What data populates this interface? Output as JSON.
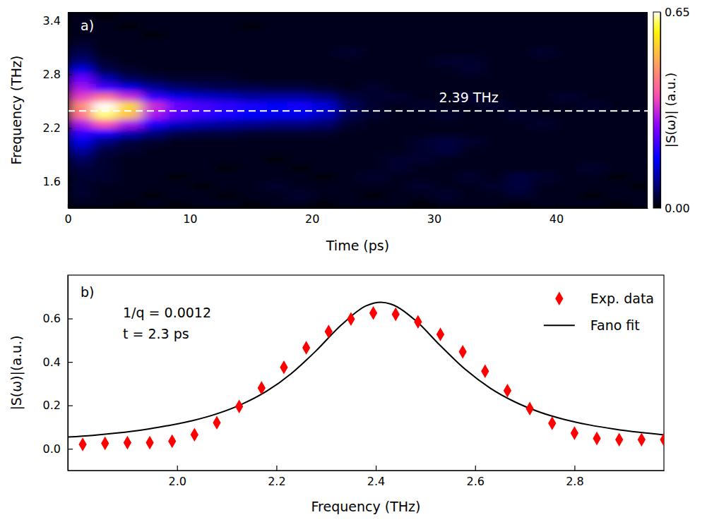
{
  "chart_data": [
    {
      "type": "heatmap",
      "panel_label": "a)",
      "x_label": "Time (ps)",
      "y_label": "Frequency (THz)",
      "xlim": [
        0,
        47.5
      ],
      "xticks": [
        0,
        10,
        20,
        30,
        40
      ],
      "ylim": [
        1.3,
        3.5
      ],
      "yticks": [
        1.6,
        2.2,
        2.8,
        3.4
      ],
      "x": [
        1,
        3,
        5,
        7,
        9,
        11,
        13,
        15,
        17,
        19,
        21,
        23,
        25,
        27,
        29,
        31,
        33,
        35,
        37,
        39,
        41,
        43,
        45,
        47
      ],
      "y": [
        1.35,
        1.45,
        1.55,
        1.65,
        1.75,
        1.85,
        1.95,
        2.05,
        2.15,
        2.25,
        2.35,
        2.45,
        2.55,
        2.65,
        2.75,
        2.85,
        2.95,
        3.05,
        3.15,
        3.25,
        3.35,
        3.45
      ],
      "z": [
        [
          0.02,
          0.02,
          0.01,
          0.02,
          0.01,
          0.02,
          0.02,
          0.01,
          0.02,
          0.02,
          0.01,
          0.02,
          0.02,
          0.02,
          0.01,
          0.02,
          0.02,
          0.02,
          0.01,
          0.02,
          0.02,
          0.02,
          0.01,
          0.02
        ],
        [
          0.03,
          0.02,
          0.02,
          0.01,
          0.02,
          0.02,
          0.01,
          0.02,
          0.02,
          0.03,
          0.02,
          0.02,
          0.01,
          0.02,
          0.02,
          0.03,
          0.02,
          0.02,
          0.03,
          0.02,
          0.02,
          0.01,
          0.02,
          0.02
        ],
        [
          0.03,
          0.02,
          0.02,
          0.02,
          0.02,
          0.01,
          0.02,
          0.02,
          0.03,
          0.02,
          0.02,
          0.02,
          0.02,
          0.02,
          0.03,
          0.02,
          0.02,
          0.03,
          0.04,
          0.02,
          0.02,
          0.02,
          0.02,
          0.01
        ],
        [
          0.03,
          0.03,
          0.02,
          0.02,
          0.01,
          0.02,
          0.02,
          0.02,
          0.02,
          0.02,
          0.01,
          0.02,
          0.03,
          0.02,
          0.02,
          0.02,
          0.03,
          0.02,
          0.04,
          0.03,
          0.02,
          0.02,
          0.01,
          0.02
        ],
        [
          0.04,
          0.03,
          0.02,
          0.02,
          0.02,
          0.02,
          0.01,
          0.02,
          0.02,
          0.01,
          0.02,
          0.02,
          0.02,
          0.03,
          0.02,
          0.02,
          0.02,
          0.02,
          0.02,
          0.02,
          0.02,
          0.03,
          0.02,
          0.02
        ],
        [
          0.06,
          0.03,
          0.02,
          0.02,
          0.02,
          0.02,
          0.02,
          0.02,
          0.01,
          0.02,
          0.02,
          0.02,
          0.02,
          0.03,
          0.03,
          0.02,
          0.02,
          0.02,
          0.02,
          0.02,
          0.02,
          0.02,
          0.02,
          0.02
        ],
        [
          0.1,
          0.04,
          0.03,
          0.02,
          0.02,
          0.02,
          0.02,
          0.02,
          0.02,
          0.02,
          0.02,
          0.02,
          0.02,
          0.02,
          0.03,
          0.04,
          0.02,
          0.02,
          0.02,
          0.02,
          0.02,
          0.02,
          0.02,
          0.02
        ],
        [
          0.15,
          0.08,
          0.04,
          0.03,
          0.02,
          0.02,
          0.02,
          0.02,
          0.02,
          0.02,
          0.02,
          0.02,
          0.02,
          0.02,
          0.03,
          0.04,
          0.03,
          0.02,
          0.02,
          0.02,
          0.02,
          0.02,
          0.02,
          0.02
        ],
        [
          0.2,
          0.18,
          0.12,
          0.08,
          0.05,
          0.04,
          0.04,
          0.03,
          0.03,
          0.03,
          0.03,
          0.02,
          0.02,
          0.02,
          0.02,
          0.02,
          0.02,
          0.02,
          0.02,
          0.02,
          0.02,
          0.02,
          0.02,
          0.02
        ],
        [
          0.3,
          0.38,
          0.3,
          0.18,
          0.13,
          0.11,
          0.1,
          0.09,
          0.08,
          0.08,
          0.07,
          0.03,
          0.02,
          0.02,
          0.02,
          0.02,
          0.02,
          0.02,
          0.02,
          0.03,
          0.02,
          0.02,
          0.02,
          0.02
        ],
        [
          0.42,
          0.62,
          0.52,
          0.3,
          0.23,
          0.2,
          0.18,
          0.16,
          0.15,
          0.15,
          0.12,
          0.05,
          0.03,
          0.02,
          0.02,
          0.03,
          0.02,
          0.02,
          0.03,
          0.02,
          0.02,
          0.02,
          0.02,
          0.02
        ],
        [
          0.45,
          0.65,
          0.55,
          0.33,
          0.25,
          0.22,
          0.2,
          0.18,
          0.16,
          0.17,
          0.14,
          0.06,
          0.03,
          0.02,
          0.03,
          0.02,
          0.02,
          0.03,
          0.02,
          0.02,
          0.02,
          0.03,
          0.02,
          0.02
        ],
        [
          0.35,
          0.42,
          0.33,
          0.2,
          0.15,
          0.13,
          0.12,
          0.1,
          0.1,
          0.1,
          0.08,
          0.04,
          0.03,
          0.03,
          0.02,
          0.02,
          0.03,
          0.02,
          0.02,
          0.02,
          0.03,
          0.02,
          0.02,
          0.02
        ],
        [
          0.3,
          0.22,
          0.15,
          0.1,
          0.07,
          0.06,
          0.05,
          0.05,
          0.04,
          0.04,
          0.03,
          0.02,
          0.03,
          0.02,
          0.02,
          0.02,
          0.02,
          0.02,
          0.02,
          0.02,
          0.02,
          0.02,
          0.02,
          0.02
        ],
        [
          0.25,
          0.12,
          0.06,
          0.04,
          0.03,
          0.03,
          0.03,
          0.02,
          0.02,
          0.02,
          0.02,
          0.02,
          0.02,
          0.02,
          0.02,
          0.02,
          0.02,
          0.02,
          0.02,
          0.02,
          0.02,
          0.02,
          0.02,
          0.02
        ],
        [
          0.15,
          0.05,
          0.03,
          0.02,
          0.02,
          0.02,
          0.02,
          0.02,
          0.02,
          0.02,
          0.02,
          0.02,
          0.02,
          0.02,
          0.02,
          0.02,
          0.03,
          0.02,
          0.02,
          0.02,
          0.02,
          0.02,
          0.02,
          0.02
        ],
        [
          0.08,
          0.03,
          0.02,
          0.02,
          0.02,
          0.02,
          0.02,
          0.02,
          0.02,
          0.02,
          0.02,
          0.02,
          0.02,
          0.02,
          0.02,
          0.03,
          0.03,
          0.02,
          0.02,
          0.02,
          0.02,
          0.02,
          0.02,
          0.02
        ],
        [
          0.05,
          0.02,
          0.02,
          0.02,
          0.02,
          0.02,
          0.02,
          0.02,
          0.02,
          0.02,
          0.02,
          0.03,
          0.02,
          0.02,
          0.02,
          0.02,
          0.02,
          0.02,
          0.02,
          0.03,
          0.02,
          0.02,
          0.02,
          0.02
        ],
        [
          0.03,
          0.02,
          0.02,
          0.02,
          0.02,
          0.02,
          0.02,
          0.02,
          0.02,
          0.02,
          0.02,
          0.02,
          0.02,
          0.02,
          0.02,
          0.02,
          0.02,
          0.02,
          0.02,
          0.02,
          0.02,
          0.02,
          0.02,
          0.02
        ],
        [
          0.02,
          0.02,
          0.02,
          0.01,
          0.02,
          0.02,
          0.02,
          0.02,
          0.02,
          0.02,
          0.02,
          0.02,
          0.02,
          0.02,
          0.02,
          0.02,
          0.02,
          0.02,
          0.02,
          0.02,
          0.02,
          0.02,
          0.02,
          0.02
        ],
        [
          0.02,
          0.02,
          0.01,
          0.02,
          0.02,
          0.02,
          0.02,
          0.01,
          0.02,
          0.02,
          0.02,
          0.02,
          0.02,
          0.02,
          0.02,
          0.02,
          0.02,
          0.02,
          0.02,
          0.02,
          0.02,
          0.02,
          0.02,
          0.02
        ],
        [
          0.02,
          0.01,
          0.02,
          0.02,
          0.02,
          0.02,
          0.02,
          0.02,
          0.02,
          0.02,
          0.02,
          0.02,
          0.02,
          0.02,
          0.02,
          0.02,
          0.02,
          0.02,
          0.02,
          0.02,
          0.02,
          0.02,
          0.02,
          0.02
        ]
      ],
      "colorbar": {
        "label": "|S(ω)| (a.u.)",
        "range": [
          0,
          0.65
        ],
        "ticks": [
          {
            "value": 0,
            "label": "0.00"
          },
          {
            "value": 0.65,
            "label": "0.65"
          }
        ]
      },
      "reference_line": {
        "value": 2.39,
        "label": "2.39 THz",
        "line_style": "dashed",
        "color": "#ffffff"
      }
    },
    {
      "type": "line",
      "panel_label": "b)",
      "x_label": "Frequency (THz)",
      "y_label": "|S(ω)|(a.u.)",
      "xlim": [
        1.78,
        2.98
      ],
      "xticks": [
        {
          "value": 2,
          "label": "2.0"
        },
        2.2,
        2.4,
        2.6,
        2.8
      ],
      "ylim": [
        -0.1,
        0.8
      ],
      "yticks": [
        {
          "value": 0,
          "label": "0.0"
        },
        0.2,
        0.4,
        0.6
      ],
      "annotations": [
        "1/q = 0.0012",
        "t = 2.3 ps"
      ],
      "legend": "upper right",
      "series": [
        {
          "name": "Exp. data",
          "type": "scatter",
          "marker": "diamond",
          "color": "#ff0000",
          "x": [
            1.81,
            1.855,
            1.9,
            1.945,
            1.99,
            2.035,
            2.08,
            2.125,
            2.17,
            2.215,
            2.26,
            2.305,
            2.35,
            2.395,
            2.44,
            2.485,
            2.53,
            2.575,
            2.62,
            2.665,
            2.71,
            2.755,
            2.8,
            2.845,
            2.89,
            2.935,
            2.98
          ],
          "values": [
            0.02,
            0.025,
            0.028,
            0.028,
            0.035,
            0.065,
            0.12,
            0.195,
            0.28,
            0.375,
            0.465,
            0.54,
            0.598,
            0.625,
            0.62,
            0.585,
            0.527,
            0.447,
            0.357,
            0.268,
            0.185,
            0.118,
            0.072,
            0.048,
            0.042,
            0.042,
            0.042
          ]
        },
        {
          "name": "Fano fit",
          "type": "line",
          "line_style": "solid",
          "color": "#000000",
          "x": [
            1.78,
            1.83,
            1.88,
            1.93,
            1.98,
            2.03,
            2.08,
            2.13,
            2.18,
            2.23,
            2.28,
            2.33,
            2.38,
            2.41,
            2.43,
            2.48,
            2.53,
            2.58,
            2.63,
            2.68,
            2.73,
            2.78,
            2.83,
            2.88,
            2.93,
            2.98
          ],
          "values": [
            0.054,
            0.062,
            0.073,
            0.087,
            0.106,
            0.129,
            0.161,
            0.205,
            0.265,
            0.347,
            0.452,
            0.569,
            0.658,
            0.675,
            0.667,
            0.591,
            0.475,
            0.366,
            0.28,
            0.216,
            0.169,
            0.135,
            0.11,
            0.091,
            0.076,
            0.064
          ]
        }
      ]
    }
  ]
}
